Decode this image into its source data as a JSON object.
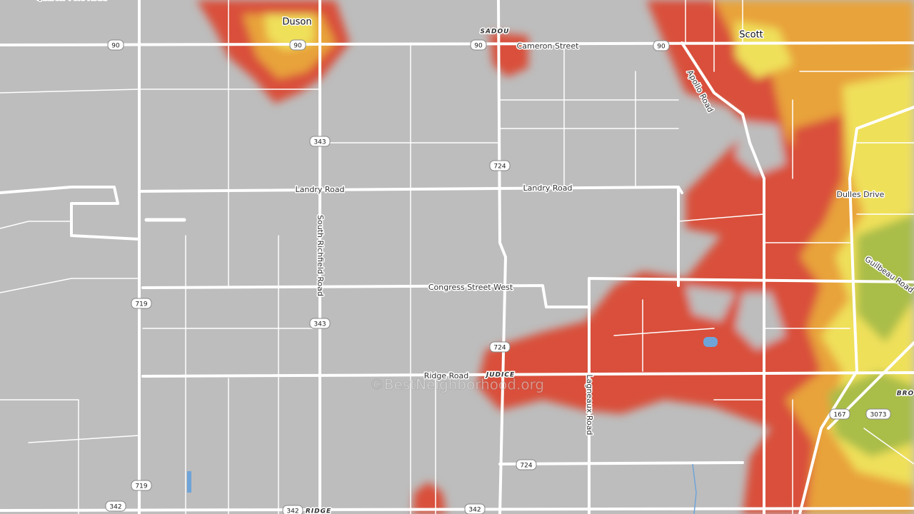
{
  "labels": [
    {
      "text": "Quarter Pole Road"
    },
    {
      "text": "Duson"
    },
    {
      "text": "SADOU"
    },
    {
      "text": "Cameron Street"
    },
    {
      "text": "Scott"
    },
    {
      "text": "Apollo Road"
    },
    {
      "text": "Landry Road"
    },
    {
      "text": "Landry Road"
    },
    {
      "text": "South Richfield Road"
    },
    {
      "text": "Dulles Drive"
    },
    {
      "text": "Guilbeau Road"
    },
    {
      "text": "Congress Street West"
    },
    {
      "text": "Ridge Road"
    },
    {
      "text": "JUDICE"
    },
    {
      "text": "Lagneaux Road"
    },
    {
      "text": "BRO"
    },
    {
      "text": "RIDGE"
    }
  ],
  "shields": [
    "90",
    "90",
    "90",
    "90",
    "343",
    "343",
    "724",
    "724",
    "724",
    "719",
    "719",
    "342",
    "342",
    "342",
    "167",
    "3073"
  ],
  "watermark": "©BestNeighborhood.org"
}
